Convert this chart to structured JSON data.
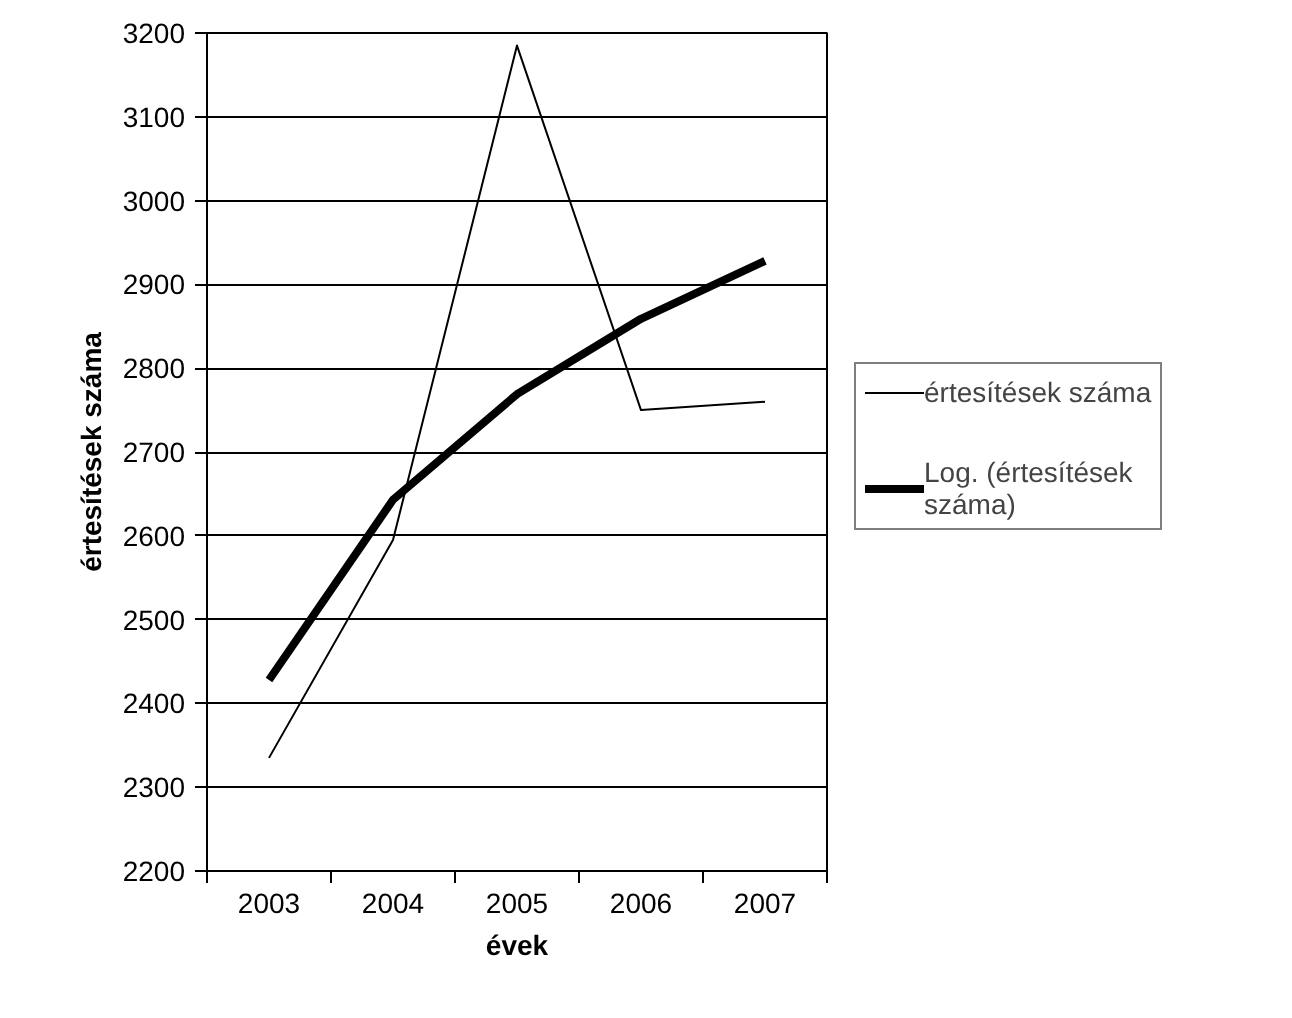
{
  "chart_data": {
    "type": "line",
    "xlabel": "évek",
    "ylabel": "értesítések száma",
    "categories": [
      "2003",
      "2004",
      "2005",
      "2006",
      "2007"
    ],
    "series": [
      {
        "name": "értesítések száma",
        "color": "#000000",
        "values": [
          2335,
          2595,
          3185,
          2750,
          2760
        ]
      },
      {
        "name": "Log. (értesítések száma)",
        "color": "#000000",
        "values": [
          2428,
          2643,
          2769,
          2859,
          2928
        ]
      }
    ],
    "ylim": [
      2200,
      3200
    ],
    "yticks": [
      2200,
      2300,
      2400,
      2500,
      2600,
      2700,
      2800,
      2900,
      3000,
      3100,
      3200
    ],
    "grid": "y",
    "legend": "right",
    "marker": "none",
    "line_style": "solid"
  }
}
